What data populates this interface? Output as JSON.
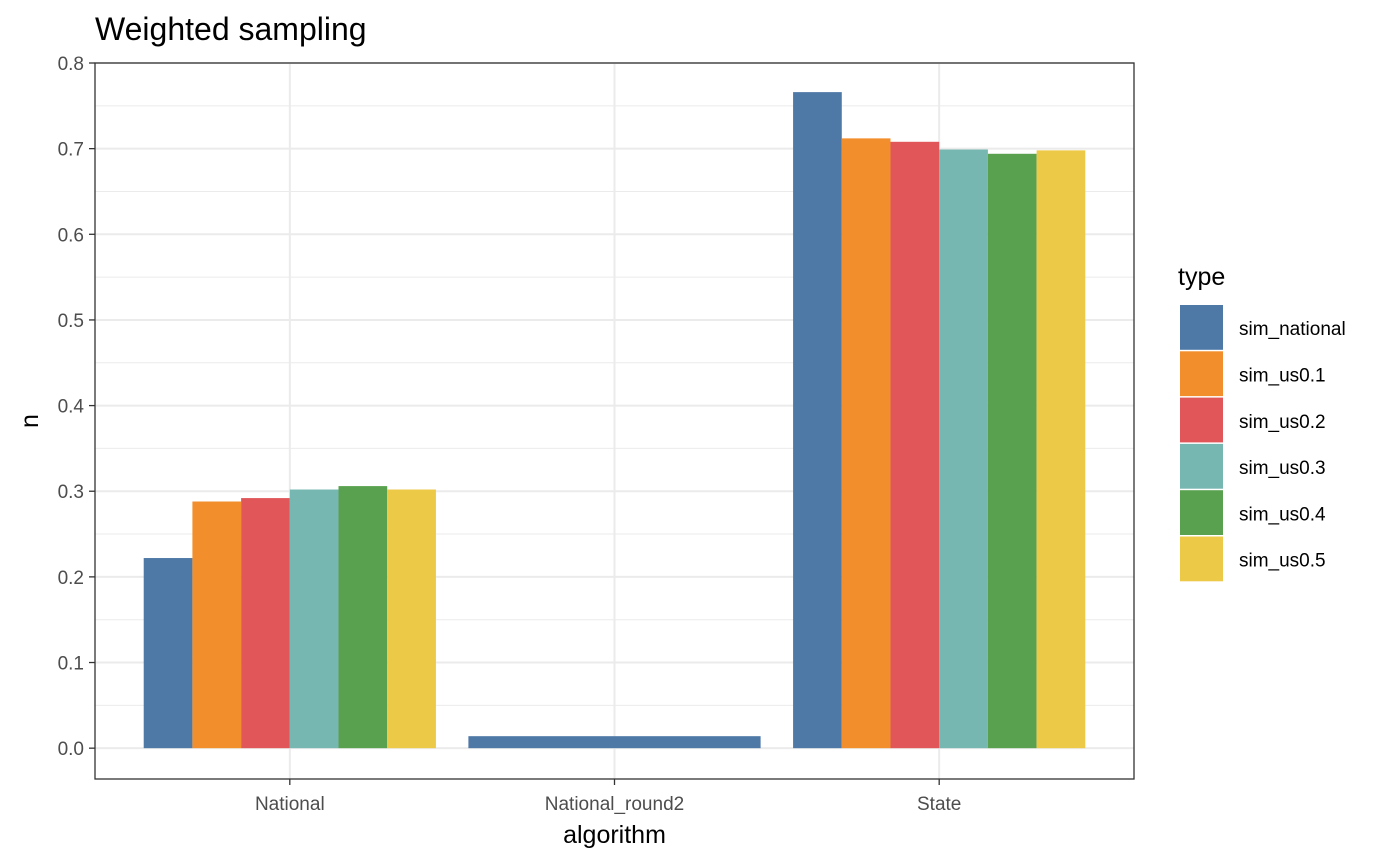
{
  "chart_data": {
    "type": "bar",
    "title": "Weighted sampling",
    "xlabel": "algorithm",
    "ylabel": "n",
    "ylim": [
      -0.036,
      0.8
    ],
    "yticks": [
      "0.0",
      "0.1",
      "0.2",
      "0.3",
      "0.4",
      "0.5",
      "0.6",
      "0.7",
      "0.8"
    ],
    "grid": true,
    "legend": {
      "title": "type",
      "position": "right"
    },
    "categories": [
      "National",
      "National_round2",
      "State"
    ],
    "series": [
      {
        "name": "sim_national",
        "color": "#4e79a7",
        "values": [
          0.222,
          0.014,
          0.766
        ]
      },
      {
        "name": "sim_us0.1",
        "color": "#f28e2b",
        "values": [
          0.288,
          null,
          0.712
        ]
      },
      {
        "name": "sim_us0.2",
        "color": "#e15759",
        "values": [
          0.292,
          null,
          0.708
        ]
      },
      {
        "name": "sim_us0.3",
        "color": "#76b7b2",
        "values": [
          0.302,
          null,
          0.699
        ]
      },
      {
        "name": "sim_us0.4",
        "color": "#59a14f",
        "values": [
          0.306,
          null,
          0.694
        ]
      },
      {
        "name": "sim_us0.5",
        "color": "#edc948",
        "values": [
          0.302,
          null,
          0.698
        ]
      }
    ]
  }
}
